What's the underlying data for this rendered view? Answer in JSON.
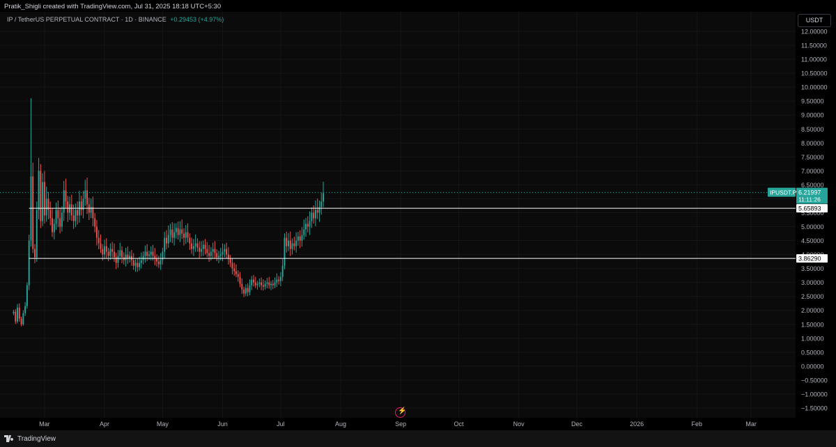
{
  "credit": "Pratik_Shigli created with TradingView.com, Jul 31, 2025 18:18 UTC+5:30",
  "symbol": {
    "title": "IP / TetherUS PERPETUAL CONTRACT · 1D · BINANCE",
    "change": "+0.29453 (+4.97%)"
  },
  "axis": {
    "unit": "USDT"
  },
  "footer": {
    "brand": "TradingView"
  },
  "colors": {
    "up": "#26a69a",
    "down": "#ef5350",
    "background": "#000000",
    "level_line": "#ffffff"
  },
  "icons": {
    "alert": "bolt-icon",
    "logo": "tradingview-logo-icon"
  },
  "chart_data": {
    "type": "candlestick",
    "ylim": [
      -1.6,
      12.0
    ],
    "y_ticks": [
      12,
      11.5,
      11,
      10.5,
      10,
      9.5,
      9,
      8.5,
      8,
      7.5,
      7,
      6.5,
      6,
      5.5,
      5,
      4.5,
      4,
      3.5,
      3,
      2.5,
      2,
      1.5,
      1,
      0.5,
      0,
      -0.5,
      -1,
      -1.5
    ],
    "y_tick_labels": [
      "12.00000",
      "11.50000",
      "11.00000",
      "10.50000",
      "10.00000",
      "9.50000",
      "9.00000",
      "8.50000",
      "8.00000",
      "7.50000",
      "7.00000",
      "6.50000",
      "6.00000",
      "5.50000",
      "5.00000",
      "4.50000",
      "4.00000",
      "3.50000",
      "3.00000",
      "2.50000",
      "2.00000",
      "1.50000",
      "1.00000",
      "0.50000",
      "0.00000",
      "−0.50000",
      "−1.00000",
      "−1.50000"
    ],
    "x_labels": [
      {
        "date": "2025-03-01",
        "label": "Mar"
      },
      {
        "date": "2025-04-01",
        "label": "Apr"
      },
      {
        "date": "2025-05-01",
        "label": "May"
      },
      {
        "date": "2025-06-01",
        "label": "Jun"
      },
      {
        "date": "2025-07-01",
        "label": "Jul"
      },
      {
        "date": "2025-08-01",
        "label": "Aug"
      },
      {
        "date": "2025-09-01",
        "label": "Sep"
      },
      {
        "date": "2025-10-01",
        "label": "Oct"
      },
      {
        "date": "2025-11-01",
        "label": "Nov"
      },
      {
        "date": "2025-12-01",
        "label": "Dec"
      },
      {
        "date": "2026-01-01",
        "label": "2026"
      },
      {
        "date": "2026-02-01",
        "label": "Feb"
      },
      {
        "date": "2026-03-01",
        "label": "Mar"
      }
    ],
    "x_range": [
      "2025-02-06",
      "2026-03-24"
    ],
    "price_series": [
      [
        "2025-02-13",
        1.95
      ],
      [
        "2025-02-14",
        1.6
      ],
      [
        "2025-02-15",
        2.1
      ],
      [
        "2025-02-16",
        1.7
      ],
      [
        "2025-02-17",
        1.5
      ],
      [
        "2025-02-18",
        1.9
      ],
      [
        "2025-02-19",
        2.15
      ],
      [
        "2025-02-20",
        2.9
      ],
      [
        "2025-02-21",
        4.5
      ],
      [
        "2025-02-22",
        6.8
      ],
      [
        "2025-02-23",
        4.2
      ],
      [
        "2025-02-24",
        3.9
      ],
      [
        "2025-02-25",
        5.6
      ],
      [
        "2025-02-26",
        7.0
      ],
      [
        "2025-02-27",
        5.2
      ],
      [
        "2025-02-28",
        6.6
      ],
      [
        "2025-03-01",
        5.4
      ],
      [
        "2025-03-02",
        6.0
      ],
      [
        "2025-03-03",
        5.6
      ],
      [
        "2025-03-04",
        5.3
      ],
      [
        "2025-03-05",
        4.8
      ],
      [
        "2025-03-06",
        5.1
      ],
      [
        "2025-03-07",
        5.6
      ],
      [
        "2025-03-08",
        5.3
      ],
      [
        "2025-03-09",
        5.0
      ],
      [
        "2025-03-10",
        5.5
      ],
      [
        "2025-03-11",
        6.3
      ],
      [
        "2025-03-12",
        5.9
      ],
      [
        "2025-03-13",
        5.5
      ],
      [
        "2025-03-14",
        5.8
      ],
      [
        "2025-03-15",
        5.4
      ],
      [
        "2025-03-16",
        5.2
      ],
      [
        "2025-03-17",
        5.6
      ],
      [
        "2025-03-18",
        5.4
      ],
      [
        "2025-03-19",
        5.9
      ],
      [
        "2025-03-20",
        5.6
      ],
      [
        "2025-03-21",
        6.0
      ],
      [
        "2025-03-22",
        6.3
      ],
      [
        "2025-03-23",
        5.8
      ],
      [
        "2025-03-24",
        5.5
      ],
      [
        "2025-03-25",
        5.7
      ],
      [
        "2025-03-26",
        5.3
      ],
      [
        "2025-03-27",
        5.0
      ],
      [
        "2025-03-28",
        4.6
      ],
      [
        "2025-03-29",
        4.4
      ],
      [
        "2025-03-30",
        4.2
      ],
      [
        "2025-03-31",
        4.0
      ],
      [
        "2025-04-01",
        4.3
      ],
      [
        "2025-04-02",
        4.1
      ],
      [
        "2025-04-03",
        3.95
      ],
      [
        "2025-04-04",
        4.2
      ],
      [
        "2025-04-05",
        4.1
      ],
      [
        "2025-04-06",
        3.9
      ],
      [
        "2025-04-07",
        3.7
      ],
      [
        "2025-04-08",
        3.95
      ],
      [
        "2025-04-09",
        4.15
      ],
      [
        "2025-04-10",
        3.9
      ],
      [
        "2025-04-11",
        3.8
      ],
      [
        "2025-04-12",
        4.0
      ],
      [
        "2025-04-13",
        3.85
      ],
      [
        "2025-04-14",
        3.95
      ],
      [
        "2025-04-15",
        3.8
      ],
      [
        "2025-04-16",
        3.6
      ],
      [
        "2025-04-17",
        3.7
      ],
      [
        "2025-04-18",
        3.55
      ],
      [
        "2025-04-19",
        3.7
      ],
      [
        "2025-04-20",
        3.8
      ],
      [
        "2025-04-21",
        3.95
      ],
      [
        "2025-04-22",
        4.1
      ],
      [
        "2025-04-23",
        3.95
      ],
      [
        "2025-04-24",
        4.0
      ],
      [
        "2025-04-25",
        4.1
      ],
      [
        "2025-04-26",
        3.95
      ],
      [
        "2025-04-27",
        3.85
      ],
      [
        "2025-04-28",
        3.75
      ],
      [
        "2025-04-29",
        3.65
      ],
      [
        "2025-04-30",
        3.8
      ],
      [
        "2025-05-01",
        4.1
      ],
      [
        "2025-05-02",
        4.6
      ],
      [
        "2025-05-03",
        4.4
      ],
      [
        "2025-05-04",
        4.7
      ],
      [
        "2025-05-05",
        4.9
      ],
      [
        "2025-05-06",
        4.6
      ],
      [
        "2025-05-07",
        4.8
      ],
      [
        "2025-05-08",
        4.95
      ],
      [
        "2025-05-09",
        4.7
      ],
      [
        "2025-05-10",
        4.9
      ],
      [
        "2025-05-11",
        4.75
      ],
      [
        "2025-05-12",
        4.6
      ],
      [
        "2025-05-13",
        4.8
      ],
      [
        "2025-05-14",
        4.6
      ],
      [
        "2025-05-15",
        4.4
      ],
      [
        "2025-05-16",
        4.2
      ],
      [
        "2025-05-17",
        4.3
      ],
      [
        "2025-05-18",
        4.4
      ],
      [
        "2025-05-19",
        4.25
      ],
      [
        "2025-05-20",
        4.1
      ],
      [
        "2025-05-21",
        4.2
      ],
      [
        "2025-05-22",
        4.35
      ],
      [
        "2025-05-23",
        4.2
      ],
      [
        "2025-05-24",
        4.05
      ],
      [
        "2025-05-25",
        3.95
      ],
      [
        "2025-05-26",
        4.1
      ],
      [
        "2025-05-27",
        4.2
      ],
      [
        "2025-05-28",
        4.05
      ],
      [
        "2025-05-29",
        3.9
      ],
      [
        "2025-05-30",
        3.95
      ],
      [
        "2025-05-31",
        4.0
      ],
      [
        "2025-06-01",
        4.1
      ],
      [
        "2025-06-02",
        4.2
      ],
      [
        "2025-06-03",
        4.0
      ],
      [
        "2025-06-04",
        3.85
      ],
      [
        "2025-06-05",
        3.7
      ],
      [
        "2025-06-06",
        3.5
      ],
      [
        "2025-06-07",
        3.4
      ],
      [
        "2025-06-08",
        3.3
      ],
      [
        "2025-06-09",
        3.2
      ],
      [
        "2025-06-10",
        2.95
      ],
      [
        "2025-06-11",
        2.75
      ],
      [
        "2025-06-12",
        2.6
      ],
      [
        "2025-06-13",
        2.8
      ],
      [
        "2025-06-14",
        2.65
      ],
      [
        "2025-06-15",
        2.9
      ],
      [
        "2025-06-16",
        3.1
      ],
      [
        "2025-06-17",
        3.0
      ],
      [
        "2025-06-18",
        2.9
      ],
      [
        "2025-06-19",
        2.95
      ],
      [
        "2025-06-20",
        3.0
      ],
      [
        "2025-06-21",
        2.9
      ],
      [
        "2025-06-22",
        2.85
      ],
      [
        "2025-06-23",
        2.95
      ],
      [
        "2025-06-24",
        3.0
      ],
      [
        "2025-06-25",
        2.9
      ],
      [
        "2025-06-26",
        2.95
      ],
      [
        "2025-06-27",
        2.9
      ],
      [
        "2025-06-28",
        3.0
      ],
      [
        "2025-06-29",
        3.1
      ],
      [
        "2025-06-30",
        3.05
      ],
      [
        "2025-07-01",
        3.2
      ],
      [
        "2025-07-02",
        3.6
      ],
      [
        "2025-07-03",
        4.6
      ],
      [
        "2025-07-04",
        4.3
      ],
      [
        "2025-07-05",
        4.5
      ],
      [
        "2025-07-06",
        4.2
      ],
      [
        "2025-07-07",
        4.4
      ],
      [
        "2025-07-08",
        4.3
      ],
      [
        "2025-07-09",
        4.5
      ],
      [
        "2025-07-10",
        4.65
      ],
      [
        "2025-07-11",
        4.5
      ],
      [
        "2025-07-12",
        4.7
      ],
      [
        "2025-07-13",
        4.9
      ],
      [
        "2025-07-14",
        5.1
      ],
      [
        "2025-07-15",
        5.0
      ],
      [
        "2025-07-16",
        5.2
      ],
      [
        "2025-07-17",
        5.5
      ],
      [
        "2025-07-18",
        5.3
      ],
      [
        "2025-07-19",
        5.6
      ],
      [
        "2025-07-20",
        5.5
      ],
      [
        "2025-07-21",
        5.7
      ],
      [
        "2025-07-22",
        5.9
      ],
      [
        "2025-07-23",
        6.2
      ]
    ],
    "levels": [
      {
        "value": 5.65893,
        "label": "5.65893",
        "start": "2025-02-21"
      },
      {
        "value": 3.8629,
        "label": "3.86290",
        "start": "2025-02-21"
      }
    ],
    "last_price": {
      "value": 6.21997,
      "symbol": "IPUSDT.P",
      "label": "6.21997",
      "countdown": "11:11:26"
    }
  }
}
